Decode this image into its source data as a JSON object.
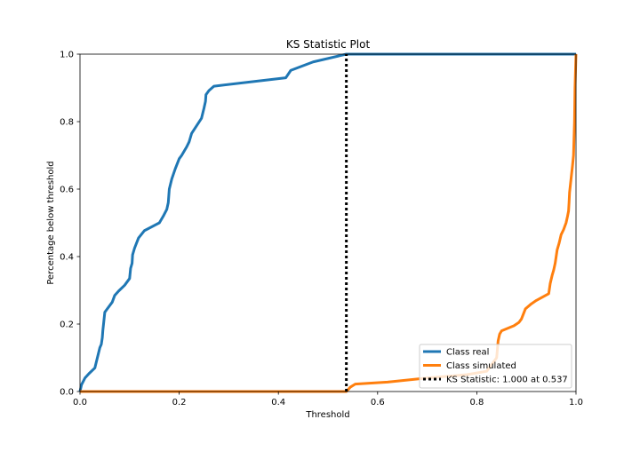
{
  "chart_data": {
    "type": "line",
    "title": "KS Statistic Plot",
    "xlabel": "Threshold",
    "ylabel": "Percentage below threshold",
    "xlim": [
      0.0,
      1.0
    ],
    "ylim": [
      0.0,
      1.0
    ],
    "x_ticks": [
      0.0,
      0.2,
      0.4,
      0.6,
      0.8,
      1.0
    ],
    "x_tick_labels": [
      "0.0",
      "0.2",
      "0.4",
      "0.6",
      "0.8",
      "1.0"
    ],
    "y_ticks": [
      0.0,
      0.2,
      0.4,
      0.6,
      0.8,
      1.0
    ],
    "y_tick_labels": [
      "0.0",
      "0.2",
      "0.4",
      "0.6",
      "0.8",
      "1.0"
    ],
    "grid": false,
    "legend_position": "lower-right",
    "series": [
      {
        "name": "Class real",
        "color": "#1f77b4",
        "points": [
          [
            0.0,
            0.0
          ],
          [
            0.003,
            0.02
          ],
          [
            0.01,
            0.04
          ],
          [
            0.018,
            0.053
          ],
          [
            0.03,
            0.07
          ],
          [
            0.04,
            0.13
          ],
          [
            0.043,
            0.14
          ],
          [
            0.045,
            0.16
          ],
          [
            0.046,
            0.18
          ],
          [
            0.05,
            0.235
          ],
          [
            0.055,
            0.245
          ],
          [
            0.065,
            0.265
          ],
          [
            0.07,
            0.285
          ],
          [
            0.078,
            0.298
          ],
          [
            0.09,
            0.315
          ],
          [
            0.1,
            0.335
          ],
          [
            0.102,
            0.365
          ],
          [
            0.105,
            0.38
          ],
          [
            0.106,
            0.405
          ],
          [
            0.11,
            0.425
          ],
          [
            0.118,
            0.455
          ],
          [
            0.13,
            0.477
          ],
          [
            0.16,
            0.5
          ],
          [
            0.168,
            0.52
          ],
          [
            0.175,
            0.54
          ],
          [
            0.178,
            0.56
          ],
          [
            0.18,
            0.6
          ],
          [
            0.185,
            0.63
          ],
          [
            0.192,
            0.66
          ],
          [
            0.2,
            0.69
          ],
          [
            0.205,
            0.7
          ],
          [
            0.215,
            0.725
          ],
          [
            0.22,
            0.74
          ],
          [
            0.222,
            0.75
          ],
          [
            0.225,
            0.765
          ],
          [
            0.245,
            0.81
          ],
          [
            0.25,
            0.84
          ],
          [
            0.253,
            0.86
          ],
          [
            0.254,
            0.88
          ],
          [
            0.26,
            0.892
          ],
          [
            0.27,
            0.905
          ],
          [
            0.415,
            0.93
          ],
          [
            0.425,
            0.952
          ],
          [
            0.47,
            0.977
          ],
          [
            0.537,
            1.0
          ],
          [
            1.0,
            1.0
          ]
        ]
      },
      {
        "name": "Class simulated",
        "color": "#ff7f0e",
        "points": [
          [
            0.0,
            0.0
          ],
          [
            0.537,
            0.0
          ],
          [
            0.545,
            0.013
          ],
          [
            0.555,
            0.022
          ],
          [
            0.62,
            0.028
          ],
          [
            0.7,
            0.04
          ],
          [
            0.78,
            0.05
          ],
          [
            0.82,
            0.06
          ],
          [
            0.84,
            0.1
          ],
          [
            0.843,
            0.15
          ],
          [
            0.846,
            0.17
          ],
          [
            0.85,
            0.18
          ],
          [
            0.875,
            0.195
          ],
          [
            0.885,
            0.205
          ],
          [
            0.89,
            0.215
          ],
          [
            0.898,
            0.245
          ],
          [
            0.91,
            0.26
          ],
          [
            0.92,
            0.27
          ],
          [
            0.945,
            0.29
          ],
          [
            0.948,
            0.32
          ],
          [
            0.952,
            0.345
          ],
          [
            0.955,
            0.36
          ],
          [
            0.958,
            0.38
          ],
          [
            0.96,
            0.4
          ],
          [
            0.962,
            0.42
          ],
          [
            0.966,
            0.44
          ],
          [
            0.97,
            0.465
          ],
          [
            0.975,
            0.48
          ],
          [
            0.98,
            0.5
          ],
          [
            0.983,
            0.52
          ],
          [
            0.985,
            0.535
          ],
          [
            0.986,
            0.56
          ],
          [
            0.987,
            0.59
          ],
          [
            0.99,
            0.63
          ],
          [
            0.993,
            0.67
          ],
          [
            0.995,
            0.7
          ],
          [
            0.996,
            0.75
          ],
          [
            0.997,
            0.8
          ],
          [
            0.998,
            0.9
          ],
          [
            0.999,
            0.95
          ],
          [
            1.0,
            1.0
          ]
        ]
      }
    ],
    "ks_line": {
      "name": "KS Statistic: 1.000 at 0.537",
      "x": 0.537,
      "y_from": 0.0,
      "y_to": 1.0,
      "color": "#000000"
    }
  }
}
